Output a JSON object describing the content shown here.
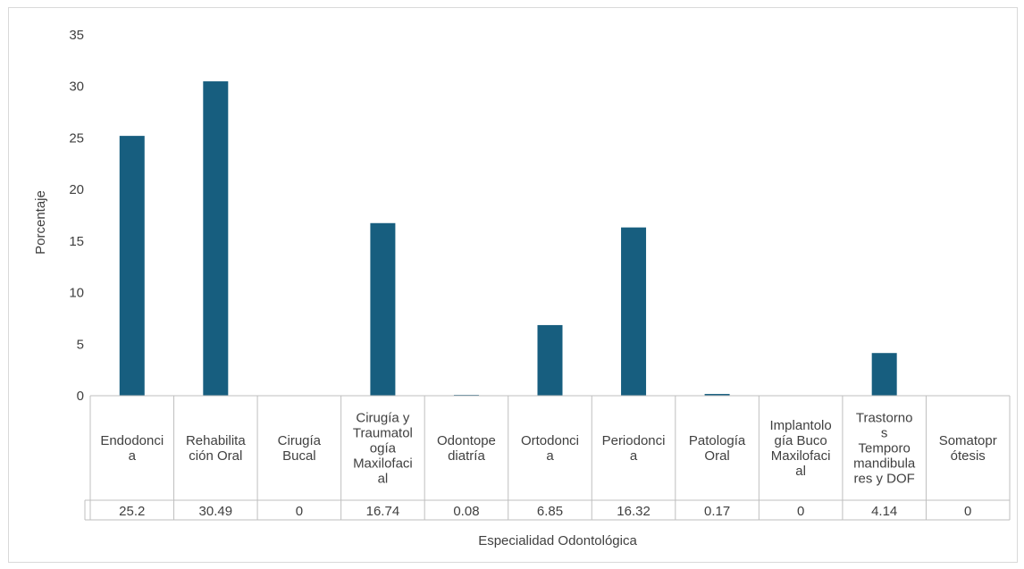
{
  "chart_data": {
    "type": "bar",
    "title": "",
    "xlabel": "Especialidad Odontológica",
    "ylabel": "Porcentaje",
    "ylim": [
      0,
      35
    ],
    "yticks": [
      0,
      5,
      10,
      15,
      20,
      25,
      30,
      35
    ],
    "grid": false,
    "legend": "none",
    "bar_color": "#175e7f",
    "categories": [
      [
        "Endodonci",
        "a"
      ],
      [
        "Rehabilita",
        "ción Oral"
      ],
      [
        "Cirugía",
        "Bucal"
      ],
      [
        "Cirugía y",
        "Traumatol",
        "ogía",
        "Maxilofaci",
        "al"
      ],
      [
        "Odontope",
        "diatría"
      ],
      [
        "Ortodonci",
        "a"
      ],
      [
        "Periodonci",
        "a"
      ],
      [
        "Patología",
        "Oral"
      ],
      [
        "Implantolo",
        "gía Buco",
        "Maxilofaci",
        "al"
      ],
      [
        "Trastorno",
        "s",
        "Temporo",
        "mandibula",
        "res y DOF"
      ],
      [
        "Somatopr",
        "ótesis"
      ]
    ],
    "values": [
      25.2,
      30.49,
      0,
      16.74,
      0.08,
      6.85,
      16.32,
      0.17,
      0,
      4.14,
      0
    ],
    "value_labels": [
      "25.2",
      "30.49",
      "0",
      "16.74",
      "0.08",
      "6.85",
      "16.32",
      "0.17",
      "0",
      "4.14",
      "0"
    ]
  }
}
